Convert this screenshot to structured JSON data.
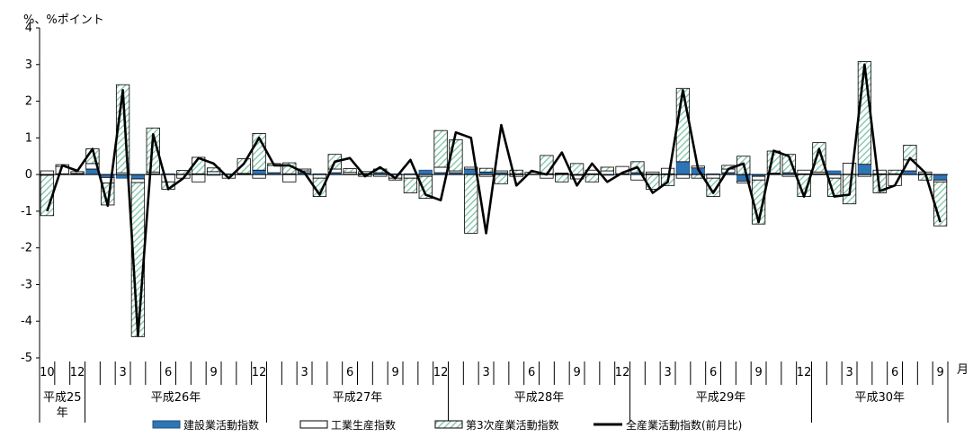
{
  "chart_data": {
    "type": "bar",
    "stacked": true,
    "ylabel": "%、%ポイント",
    "xlabel": "月",
    "ylim": [
      -5,
      4
    ],
    "yticks": [
      4,
      3,
      2,
      1,
      0,
      -1,
      -2,
      -3,
      -4,
      -5
    ],
    "month_ticks": [
      {
        "i": 0,
        "label": "10"
      },
      {
        "i": 2,
        "label": "12"
      },
      {
        "i": 5,
        "label": "3"
      },
      {
        "i": 8,
        "label": "6"
      },
      {
        "i": 11,
        "label": "9"
      },
      {
        "i": 14,
        "label": "12"
      },
      {
        "i": 17,
        "label": "3"
      },
      {
        "i": 20,
        "label": "6"
      },
      {
        "i": 23,
        "label": "9"
      },
      {
        "i": 26,
        "label": "12"
      },
      {
        "i": 29,
        "label": "3"
      },
      {
        "i": 32,
        "label": "6"
      },
      {
        "i": 35,
        "label": "9"
      },
      {
        "i": 38,
        "label": "12"
      },
      {
        "i": 41,
        "label": "3"
      },
      {
        "i": 44,
        "label": "6"
      },
      {
        "i": 47,
        "label": "9"
      },
      {
        "i": 50,
        "label": "12"
      },
      {
        "i": 53,
        "label": "3"
      },
      {
        "i": 56,
        "label": "6"
      },
      {
        "i": 59,
        "label": "9"
      }
    ],
    "year_groups": [
      {
        "label": "平成25年",
        "start": 0,
        "end": 3
      },
      {
        "label": "平成26年",
        "start": 3,
        "end": 15
      },
      {
        "label": "平成27年",
        "start": 15,
        "end": 27
      },
      {
        "label": "平成28年",
        "start": 27,
        "end": 39
      },
      {
        "label": "平成29年",
        "start": 39,
        "end": 51
      },
      {
        "label": "平成30年",
        "start": 51,
        "end": 60
      }
    ],
    "series": [
      {
        "name": "建設業活動指数",
        "color": "#2e75b6",
        "values": [
          -0.02,
          0.02,
          0.01,
          0.15,
          -0.08,
          -0.1,
          -0.12,
          0.02,
          0.02,
          0.01,
          0.02,
          -0.02,
          0.02,
          0.01,
          0.12,
          0.05,
          0.02,
          0.05,
          0.02,
          0.05,
          0.01,
          0.03,
          0.05,
          0.02,
          0.02,
          0.12,
          0.05,
          0.05,
          0.15,
          0.07,
          0.05,
          0.02,
          0.01,
          0.02,
          0.02,
          -0.02,
          0.02,
          -0.02,
          0.02,
          0.05,
          0.02,
          0.02,
          0.35,
          0.18,
          0.02,
          0.05,
          -0.18,
          -0.05,
          0.02,
          0.05,
          0.02,
          0.02,
          0.1,
          0.01,
          0.28,
          0.02,
          0.02,
          0.1,
          0.02,
          -0.15
        ]
      },
      {
        "name": "工業生産指数",
        "color": "#ffffff",
        "values": [
          0.1,
          0.2,
          0.02,
          0.15,
          -0.15,
          0.05,
          -0.1,
          0.05,
          -0.2,
          -0.1,
          -0.2,
          0.08,
          -0.1,
          0.02,
          -0.1,
          0.2,
          -0.2,
          0.05,
          -0.1,
          0.1,
          0.05,
          0.05,
          -0.05,
          -0.1,
          -0.1,
          -0.05,
          0.15,
          0.05,
          0.05,
          -0.05,
          0.05,
          -0.05,
          0.05,
          -0.1,
          0.02,
          -0.1,
          0.1,
          0.1,
          0.2,
          -0.15,
          0.05,
          0.15,
          -0.1,
          0.05,
          -0.1,
          0.1,
          -0.05,
          -0.1,
          0.02,
          -0.05,
          0.1,
          0.05,
          -0.1,
          0.3,
          -0.05,
          0.1,
          -0.3,
          0.3,
          0.05,
          -0.05
        ]
      },
      {
        "name": "第3次産業活動指数",
        "color": "#a9d6c1",
        "values": [
          -1.1,
          0.05,
          0.05,
          0.4,
          -0.6,
          2.4,
          -4.2,
          1.2,
          -0.2,
          0.1,
          0.45,
          0.1,
          0.0,
          0.4,
          1.0,
          0.05,
          0.3,
          0.05,
          -0.5,
          0.4,
          0.1,
          -0.05,
          0.1,
          -0.05,
          -0.4,
          -0.6,
          1.0,
          0.85,
          -1.6,
          0.1,
          -0.25,
          0.1,
          0.0,
          0.5,
          -0.2,
          0.3,
          -0.2,
          0.1,
          0.0,
          0.3,
          -0.4,
          -0.3,
          2.0,
          -0.1,
          -0.5,
          0.1,
          0.5,
          -1.2,
          0.6,
          0.5,
          -0.6,
          0.8,
          -0.5,
          -0.8,
          2.8,
          -0.5,
          0.1,
          0.4,
          -0.15,
          -1.2
        ]
      }
    ],
    "total": {
      "name": "全産業活動指数(前月比)",
      "color": "#000000",
      "values": [
        -1.0,
        0.25,
        0.1,
        0.7,
        -0.85,
        2.3,
        -4.4,
        1.1,
        -0.4,
        -0.1,
        0.45,
        0.3,
        -0.1,
        0.3,
        1.0,
        0.25,
        0.25,
        0.05,
        -0.55,
        0.35,
        0.45,
        -0.05,
        0.2,
        -0.1,
        0.4,
        -0.55,
        -0.7,
        1.15,
        1.0,
        -1.6,
        1.35,
        -0.3,
        0.1,
        0.0,
        0.6,
        -0.3,
        0.3,
        -0.2,
        0.05,
        0.2,
        -0.5,
        -0.2,
        2.3,
        0.15,
        -0.5,
        0.15,
        0.3,
        -1.3,
        0.65,
        0.5,
        -0.6,
        0.7,
        -0.6,
        -0.55,
        3.0,
        -0.45,
        -0.3,
        0.45,
        0.05,
        -1.3
      ]
    }
  }
}
